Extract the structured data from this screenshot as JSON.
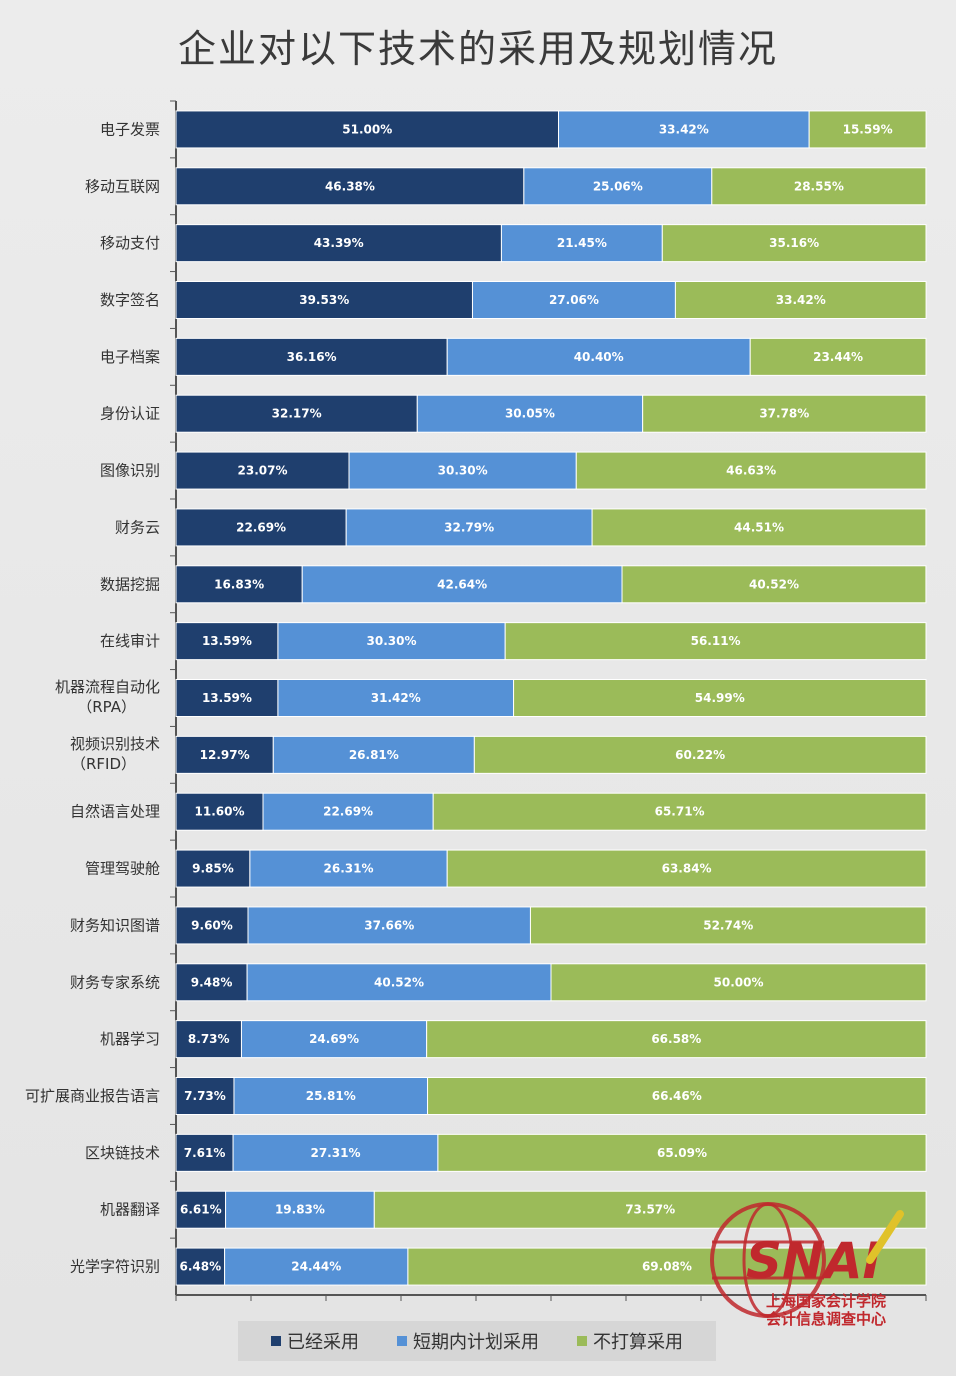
{
  "chart_data": {
    "type": "bar",
    "orientation": "horizontal",
    "stacked": true,
    "title": "企业对以下技术的采用及规划情况",
    "categories": [
      "电子发票",
      "移动互联网",
      "移动支付",
      "数字签名",
      "电子档案",
      "身份认证",
      "图像识别",
      "财务云",
      "数据挖掘",
      "在线审计",
      "机器流程自动化|（RPA）",
      "视频识别技术|（RFID）",
      "自然语言处理",
      "管理驾驶舱",
      "财务知识图谱",
      "财务专家系统",
      "机器学习",
      "可扩展商业报告语言",
      "区块链技术",
      "机器翻译",
      "光学字符识别"
    ],
    "series": [
      {
        "name": "已经采用",
        "color": "#1f3f6e",
        "values": [
          51.0,
          46.38,
          43.39,
          39.53,
          36.16,
          32.17,
          23.07,
          22.69,
          16.83,
          13.59,
          13.59,
          12.97,
          11.6,
          9.85,
          9.6,
          9.48,
          8.73,
          7.73,
          7.61,
          6.61,
          6.48
        ]
      },
      {
        "name": "短期内计划采用",
        "color": "#5591d6",
        "values": [
          33.42,
          25.06,
          21.45,
          27.06,
          40.4,
          30.05,
          30.3,
          32.79,
          42.64,
          30.3,
          31.42,
          26.81,
          22.69,
          26.31,
          37.66,
          40.52,
          24.69,
          25.81,
          27.31,
          19.83,
          24.44
        ]
      },
      {
        "name": "不打算采用",
        "color": "#9bbb59",
        "values": [
          15.59,
          28.55,
          35.16,
          33.42,
          23.44,
          37.78,
          46.63,
          44.51,
          40.52,
          56.11,
          54.99,
          60.22,
          65.71,
          63.84,
          52.74,
          50.0,
          66.58,
          66.46,
          65.09,
          73.57,
          69.08
        ]
      }
    ],
    "value_format": "percent_2dp",
    "xlim": [
      0,
      100
    ],
    "legend_position": "bottom",
    "grid": false
  },
  "watermark": {
    "logo_text": "SNAI",
    "org_line1": "上海国家会计学院",
    "org_line2": "会计信息调查中心",
    "color": "#c0282d"
  }
}
